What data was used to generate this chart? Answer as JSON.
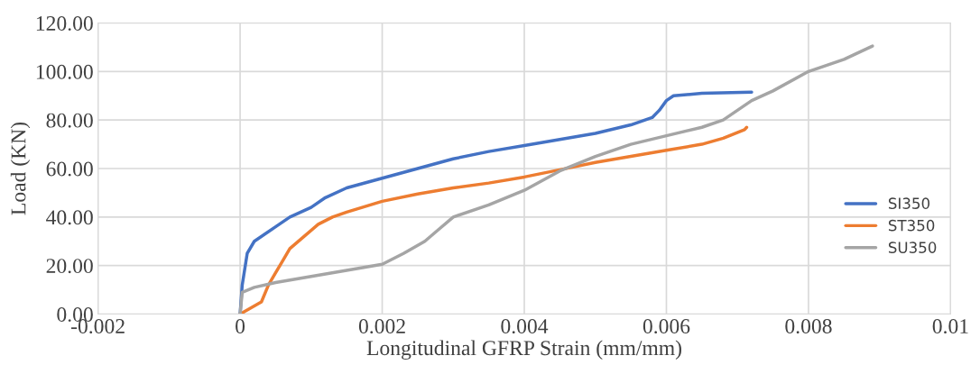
{
  "chart_data": {
    "type": "line",
    "xlabel": "Longitudinal GFRP Strain (mm/mm)",
    "ylabel": "Load (KN)",
    "series": [
      {
        "name": "SI350",
        "color": "#4472c4",
        "x": [
          0,
          3e-05,
          0.0001,
          0.0002,
          0.0005,
          0.0007,
          0.001,
          0.0012,
          0.0015,
          0.002,
          0.0025,
          0.003,
          0.0035,
          0.004,
          0.0045,
          0.005,
          0.0055,
          0.0058,
          0.0059,
          0.006,
          0.0061,
          0.0065,
          0.0072
        ],
        "values": [
          0,
          12,
          25,
          30,
          36,
          40,
          44,
          48,
          52,
          56,
          60,
          64,
          67,
          69.5,
          72,
          74.5,
          78,
          81,
          84,
          88,
          90,
          91,
          91.5
        ]
      },
      {
        "name": "ST350",
        "color": "#ed7d31",
        "x": [
          0,
          0.0003,
          0.0004,
          0.0005,
          0.0006,
          0.0007,
          0.0009,
          0.0011,
          0.0013,
          0.0015,
          0.002,
          0.0025,
          0.003,
          0.0035,
          0.004,
          0.0045,
          0.005,
          0.0055,
          0.006,
          0.0065,
          0.0068,
          0.0071,
          0.00713
        ],
        "values": [
          0,
          5,
          12,
          17,
          22,
          27,
          32,
          37,
          40,
          42,
          46.5,
          49.5,
          52,
          54,
          56.5,
          59.5,
          62.5,
          65,
          67.5,
          70,
          72.5,
          76,
          77
        ]
      },
      {
        "name": "SU350",
        "color": "#a5a5a5",
        "x": [
          0,
          3e-05,
          0.0002,
          0.0005,
          0.001,
          0.0015,
          0.002,
          0.0023,
          0.0026,
          0.0028,
          0.003,
          0.0035,
          0.004,
          0.0045,
          0.005,
          0.0055,
          0.006,
          0.0065,
          0.0068,
          0.007,
          0.0072,
          0.0075,
          0.008,
          0.0085,
          0.0089
        ],
        "values": [
          0,
          9,
          11,
          13,
          15.5,
          18,
          20.5,
          25,
          30,
          35,
          40,
          45,
          51,
          59,
          65,
          70,
          73.5,
          77,
          80,
          84,
          88,
          92,
          100,
          105,
          110.5
        ]
      }
    ],
    "xlim": [
      -0.002,
      0.01
    ],
    "xticks": [
      -0.002,
      0,
      0.002,
      0.004,
      0.006,
      0.008,
      0.01
    ],
    "ylim": [
      0,
      120
    ],
    "yticks": [
      {
        "value": 0,
        "label": "0.00"
      },
      {
        "value": 20,
        "label": "20.00"
      },
      {
        "value": 40,
        "label": "40.00"
      },
      {
        "value": 60,
        "label": "60.00"
      },
      {
        "value": 80,
        "label": "80.00"
      },
      {
        "value": 100,
        "label": "100.00"
      },
      {
        "value": 120,
        "label": "120.00"
      }
    ],
    "grid": true,
    "legend": "right",
    "marker": "none",
    "line_style": "solid"
  }
}
